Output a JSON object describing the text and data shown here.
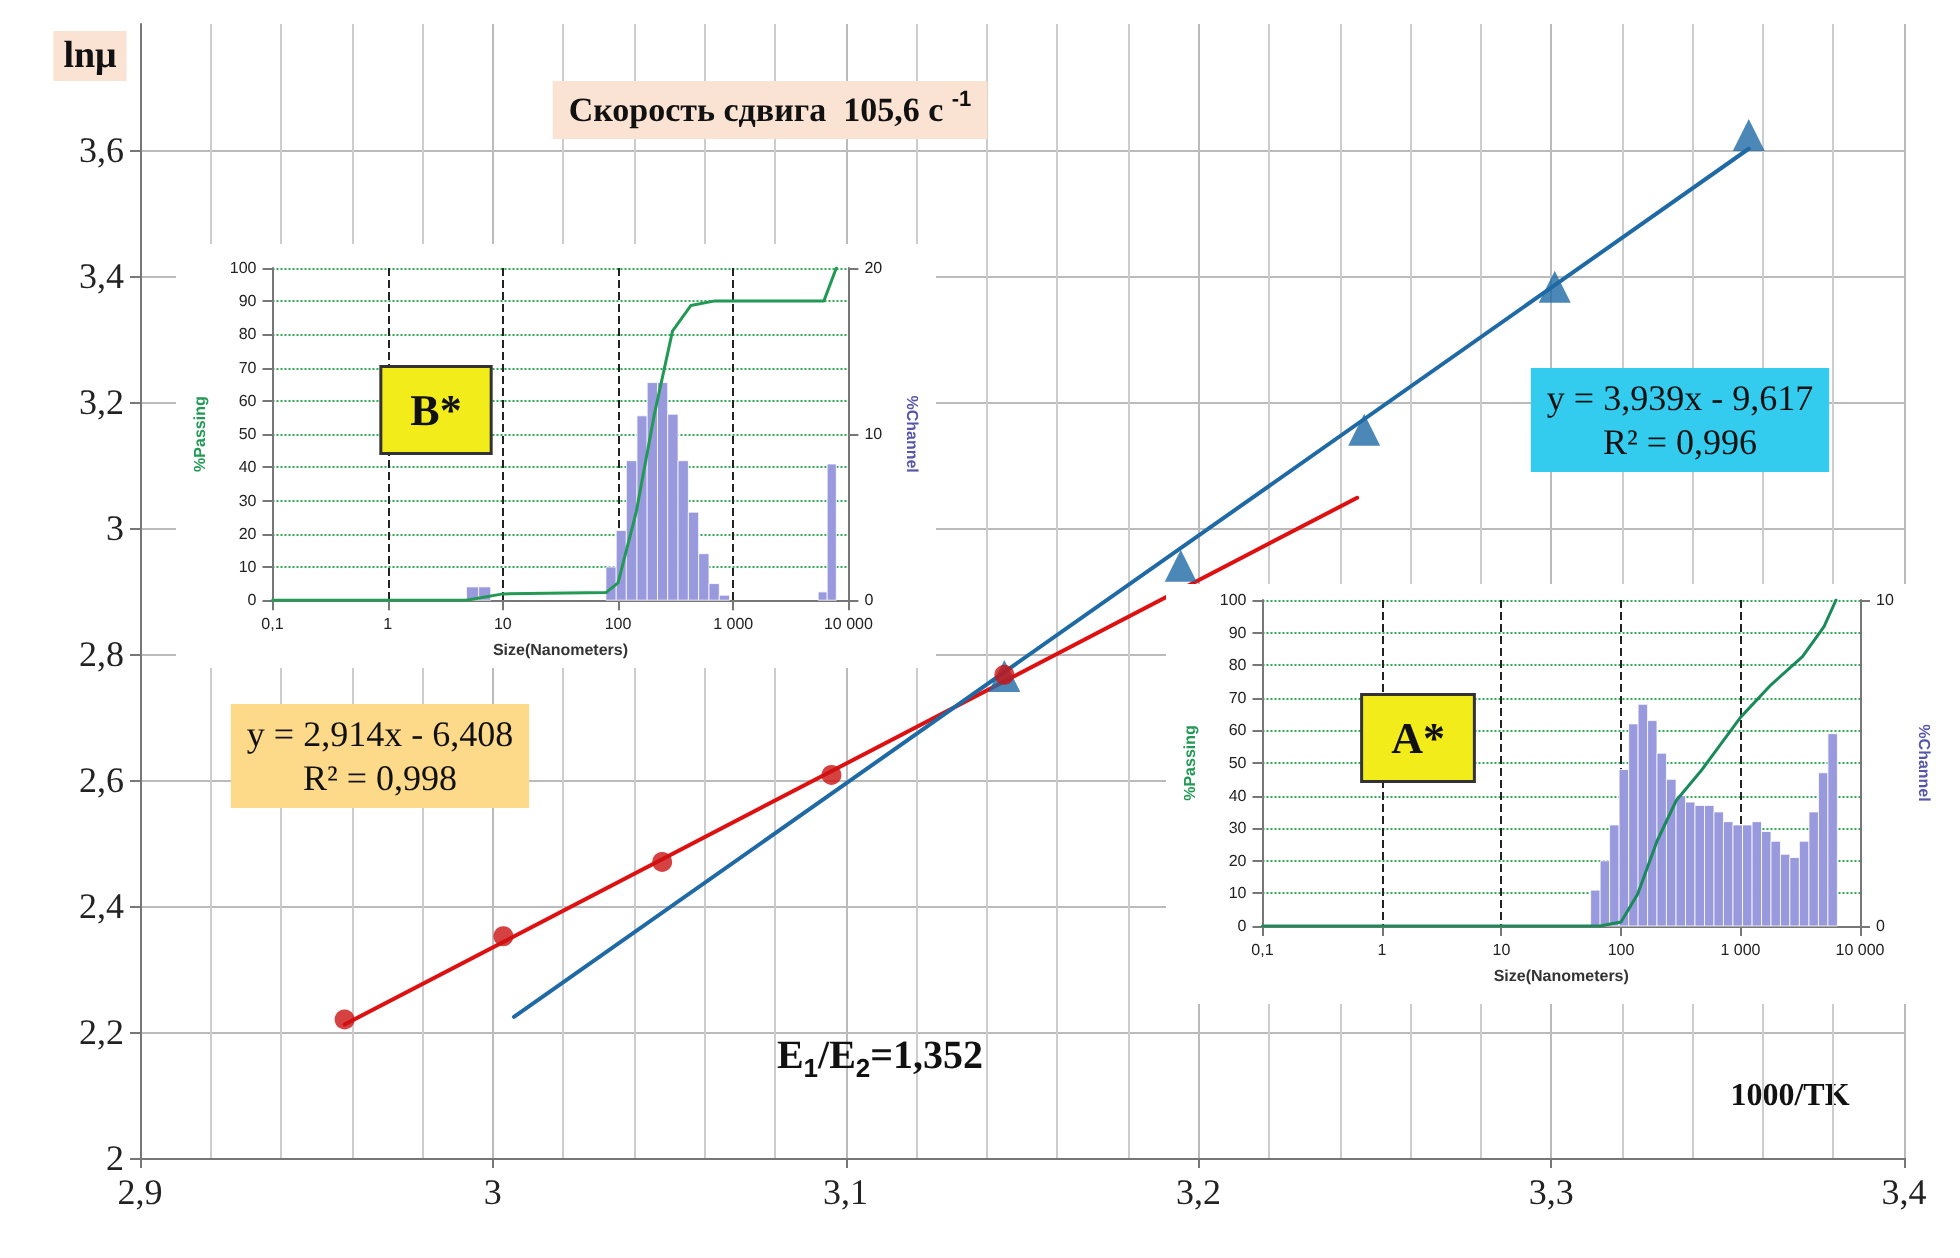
{
  "chart_data": [
    {
      "type": "scatter",
      "xlabel": "1000/TK",
      "ylabel": "lnμ",
      "xlim": [
        2.9,
        3.4
      ],
      "xticks": [
        {
          "value": 2.9,
          "label": "2,9"
        },
        3,
        {
          "value": 3.1,
          "label": "3,1"
        },
        {
          "value": 3.2,
          "label": "3,2"
        },
        {
          "value": 3.3,
          "label": "3,3"
        },
        {
          "value": 3.4,
          "label": "3,4"
        }
      ],
      "ylim": [
        2,
        3.8
      ],
      "yticks": [
        2,
        {
          "value": 2.2,
          "label": "2,2"
        },
        {
          "value": 2.4,
          "label": "2,4"
        },
        {
          "value": 2.6,
          "label": "2,6"
        },
        {
          "value": 2.8,
          "label": "2,8"
        },
        3,
        {
          "value": 3.2,
          "label": "3,2"
        },
        {
          "value": 3.4,
          "label": "3,4"
        },
        {
          "value": 3.6,
          "label": "3,6"
        }
      ],
      "grid": true,
      "series": [
        {
          "marker": "triangle",
          "color": "#1f6aa5",
          "x": [
            3.145,
            3.195,
            3.247,
            3.301,
            3.356
          ],
          "values": [
            2.765,
            2.94,
            3.156,
            3.383,
            3.624
          ]
        },
        {
          "marker": "circle",
          "color": "#cc1111",
          "x": [
            2.958,
            3.003,
            3.048,
            3.096,
            3.145
          ],
          "values": [
            2.22,
            2.352,
            2.47,
            2.608,
            2.767
          ]
        },
        {
          "type": "line",
          "marker": "none",
          "line_style": "solid",
          "color": "#dd1111",
          "x": [
            2.958,
            3.245
          ],
          "values": [
            2.212,
            3.048
          ]
        },
        {
          "type": "line",
          "marker": "none",
          "line_style": "solid",
          "color": "#1f6aa5",
          "x": [
            3.006,
            3.356
          ],
          "values": [
            2.224,
            3.602
          ]
        }
      ],
      "annotations": [
        "Скорость сдвига  105,6 с $^{-1}$",
        "y = 2,914x - 6,408\nR² = 0,998",
        "y = 3,939x - 9,617\nR² = 0,996",
        "E$_{1}$/E$_{2}$=1,352"
      ]
    },
    {
      "type": "histogram",
      "xlabel": "Size(Nanometers)",
      "ylabel": "%Passing",
      "y2label": "%Channel",
      "log": "x",
      "grid": true,
      "xlim": [
        0.1,
        10000
      ],
      "xticks": [
        {
          "value": 0.1,
          "label": "0,1"
        },
        1,
        10,
        100,
        {
          "value": 1000,
          "label": "1 000"
        },
        {
          "value": 10000,
          "label": "10 000"
        }
      ],
      "ylim": [
        0,
        100
      ],
      "yticks": [
        0,
        10,
        20,
        30,
        40,
        50,
        60,
        70,
        80,
        90,
        100
      ],
      "y2lim": [
        0,
        20
      ],
      "y2ticks": [
        0,
        10,
        20
      ],
      "series": [
        {
          "axis": "y2",
          "color": "#9999dd",
          "bins": [
            4.83,
            6.16,
            7.85,
            78.5,
            96.4,
            118,
            146,
            179,
            220,
            270,
            332,
            408,
            501,
            616,
            757,
            929,
            5460,
            6540,
            7850
          ],
          "values": [
            0.8,
            0.8,
            0,
            2.0,
            4.2,
            8.4,
            11.1,
            13.1,
            13.1,
            11.2,
            8.4,
            5.3,
            2.8,
            1.0,
            0.3,
            0,
            0.5,
            8.2
          ]
        },
        {
          "type": "line",
          "axis": "y",
          "marker": "none",
          "line_style": "solid",
          "color": "#229955",
          "x": [
            0.1,
            4.83,
            10,
            78.5,
            100,
            144,
            206,
            297,
            428,
            695,
            6130,
            7850
          ],
          "values": [
            0,
            0,
            1.9,
            2.3,
            5.2,
            26.6,
            55.7,
            81,
            88.7,
            90.1,
            90.1,
            100
          ]
        }
      ],
      "annotations": [
        "B*"
      ]
    },
    {
      "type": "histogram",
      "xlabel": "Size(Nanometers)",
      "ylabel": "%Passing",
      "y2label": "%Channel",
      "log": "x",
      "grid": true,
      "xlim": [
        0.1,
        10000
      ],
      "xticks": [
        {
          "value": 0.1,
          "label": "0,1"
        },
        1,
        10,
        100,
        {
          "value": 1000,
          "label": "1 000"
        },
        {
          "value": 10000,
          "label": "10 000"
        }
      ],
      "ylim": [
        0,
        100
      ],
      "yticks": [
        0,
        10,
        20,
        30,
        40,
        50,
        60,
        70,
        80,
        90,
        100
      ],
      "y2lim": [
        0,
        10
      ],
      "y2ticks": [
        0,
        10
      ],
      "series": [
        {
          "axis": "y2",
          "color": "#9999dd",
          "bins": [
            55.7,
            66.9,
            80.3,
            96.4,
            116,
            139,
            167,
            200,
            240,
            289,
            347,
            416,
            500,
            600,
            720,
            865,
            1040,
            1250,
            1500,
            1800,
            2160,
            2590,
            3110,
            3740,
            4490,
            5390,
            6470
          ],
          "values": [
            1.1,
            2.0,
            3.1,
            4.8,
            6.2,
            6.8,
            6.3,
            5.3,
            4.5,
            4.0,
            3.8,
            3.7,
            3.7,
            3.5,
            3.2,
            3.1,
            3.1,
            3.2,
            2.9,
            2.6,
            2.2,
            2.1,
            2.6,
            3.5,
            4.7,
            5.9
          ]
        },
        {
          "type": "line",
          "axis": "y",
          "marker": "none",
          "line_style": "solid",
          "color": "#1a8a5a",
          "x": [
            0.1,
            67,
            100,
            138,
            200,
            290,
            470,
            1000,
            1800,
            3300,
            5000,
            6300
          ],
          "values": [
            0,
            0,
            1.2,
            9.8,
            26,
            38.5,
            47.7,
            64,
            74,
            82.6,
            91.8,
            100
          ]
        }
      ],
      "annotations": [
        "A*"
      ]
    }
  ]
}
